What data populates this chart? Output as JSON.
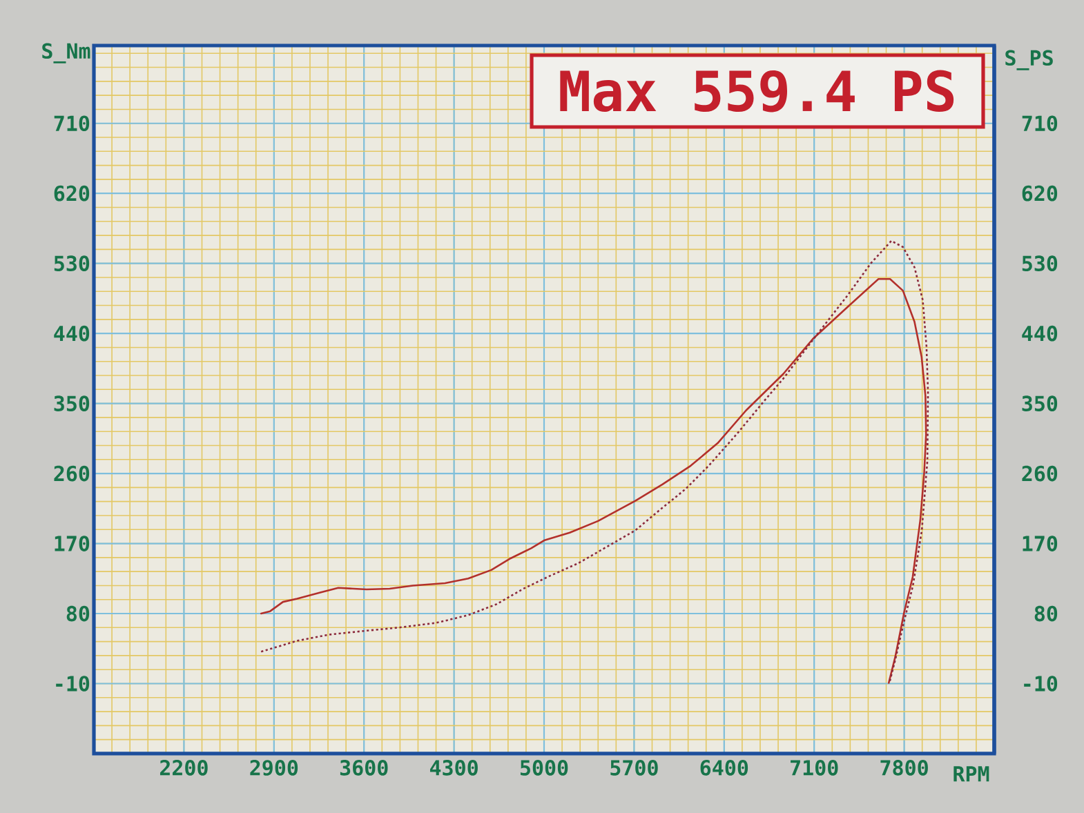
{
  "chart_data": {
    "type": "line",
    "xlabel": "RPM",
    "ylabel": "S_Nm",
    "y2label": "S_PS",
    "annotations": [
      "Max 559.4 PS"
    ],
    "xlim": [
      1500,
      8500
    ],
    "xticks": [
      2200,
      2900,
      3600,
      4300,
      5000,
      5700,
      6400,
      7100,
      7800
    ],
    "ylim": [
      -100,
      810
    ],
    "yticks": [
      -10,
      80,
      170,
      260,
      350,
      440,
      530,
      620,
      710
    ],
    "y2lim": [
      -100,
      810
    ],
    "y2ticks": [
      -10,
      80,
      170,
      260,
      350,
      440,
      530,
      620,
      710
    ],
    "grid": true,
    "marker": "none",
    "series": [
      {
        "color": "#b3302b",
        "line_style": "solid",
        "x": [
          2800,
          2870,
          2970,
          3080,
          3260,
          3400,
          3620,
          3800,
          3980,
          4230,
          4410,
          4590,
          4740,
          4900,
          5000,
          5200,
          5420,
          5710,
          5920,
          6140,
          6350,
          6570,
          6860,
          7090,
          7360,
          7600,
          7690,
          7790,
          7880,
          7935,
          7965,
          7970,
          7955,
          7925,
          7866,
          7800,
          7730,
          7680
        ],
        "values": [
          80,
          83,
          95,
          99,
          107,
          113,
          111,
          112,
          116,
          119,
          125,
          136,
          151,
          164,
          174,
          184,
          199,
          225,
          246,
          270,
          299,
          341,
          388,
          433,
          474,
          510,
          510,
          495,
          455,
          410,
          360,
          310,
          260,
          200,
          127,
          82,
          24,
          -9
        ]
      },
      {
        "color": "#8c2a3c",
        "line_style": "dotted",
        "axis": "y2",
        "x": [
          2800,
          2900,
          3080,
          3330,
          3620,
          3870,
          4160,
          4410,
          4630,
          4840,
          5040,
          5270,
          5490,
          5710,
          5920,
          6100,
          6280,
          6500,
          6710,
          6860,
          7110,
          7360,
          7540,
          7700,
          7790,
          7880,
          7944,
          7973,
          7985,
          7980,
          7937,
          7868,
          7796,
          7731,
          7685
        ],
        "values": [
          31,
          36,
          45,
          53,
          58,
          62,
          68,
          78,
          92,
          112,
          128,
          145,
          166,
          187,
          216,
          240,
          270,
          311,
          353,
          382,
          436,
          489,
          530,
          559,
          551,
          525,
          483,
          424,
          365,
          276,
          187,
          116,
          68,
          21,
          -9
        ]
      }
    ]
  }
}
